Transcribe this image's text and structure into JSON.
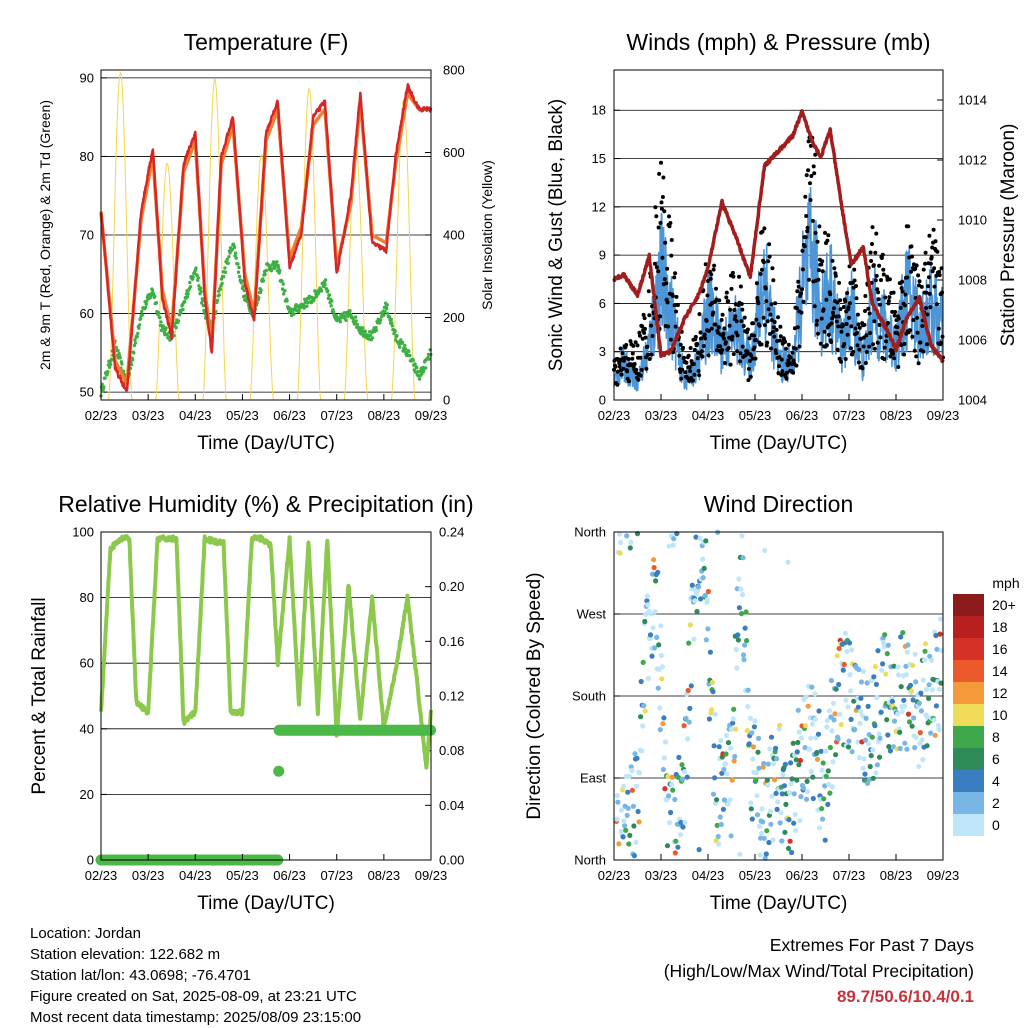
{
  "x_ticks": [
    "02/23",
    "03/23",
    "04/23",
    "05/23",
    "06/23",
    "07/23",
    "08/23",
    "09/23"
  ],
  "panels": {
    "temperature": {
      "title": "Temperature (F)",
      "xlabel": "Time (Day/UTC)",
      "ylabel": "2m & 9m T (Red, Orange) & 2m Td (Green)",
      "ylabel_right": "Solar Insolation (Yellow)",
      "yticks": [
        "50",
        "60",
        "70",
        "80",
        "90"
      ],
      "yticks_right": [
        "0",
        "200",
        "400",
        "600",
        "800"
      ]
    },
    "winds": {
      "title": "Winds (mph) & Pressure (mb)",
      "xlabel": "Time (Day/UTC)",
      "ylabel": "Sonic Wind & Gust (Blue, Black)",
      "ylabel_right": "Station Pressure (Maroon)",
      "yticks": [
        "0",
        "3",
        "6",
        "9",
        "12",
        "15",
        "18"
      ],
      "yticks_right": [
        "1004",
        "1006",
        "1008",
        "1010",
        "1012",
        "1014"
      ]
    },
    "humidity": {
      "title": "Relative Humidity (%) & Precipitation (in)",
      "xlabel": "Time (Day/UTC)",
      "ylabel": "Percent & Total Rainfall",
      "yticks": [
        "0",
        "20",
        "40",
        "60",
        "80",
        "100"
      ],
      "yticks_right": [
        "0.00",
        "0.04",
        "0.08",
        "0.12",
        "0.16",
        "0.20",
        "0.24"
      ]
    },
    "direction": {
      "title": "Wind Direction",
      "xlabel": "Time (Day/UTC)",
      "ylabel": "Direction (Colored By Speed)",
      "yticks": [
        "North",
        "East",
        "South",
        "West",
        "North"
      ],
      "colorbar_title": "mph",
      "colorbar_labels": [
        "20+",
        "18",
        "16",
        "14",
        "12",
        "10",
        "8",
        "6",
        "4",
        "2",
        "0"
      ]
    }
  },
  "colors": {
    "temp_2m": "#d62728",
    "temp_9m": "#f08030",
    "dewpoint": "#3cb043",
    "solar": "#f5d54a",
    "wind": "#4c96d7",
    "gust": "#000000",
    "pressure": "#a01e1e",
    "humidity": "#8cc84b",
    "precip": "#4cb848",
    "colorbar": [
      "#8b1a1a",
      "#b8201f",
      "#d63127",
      "#ec5a2b",
      "#f59a3a",
      "#eedc58",
      "#3fa84a",
      "#2e8b57",
      "#3a7dc1",
      "#78b6e6",
      "#bfe6f8"
    ]
  },
  "chart_data": [
    {
      "type": "line",
      "title": "Temperature (F)",
      "xlabel": "Time (Day/UTC)",
      "ylabel": "2m & 9m T (Red, Orange) & 2m Td (Green)",
      "ylabel_right": "Solar Insolation (Yellow)",
      "ylim": [
        49,
        91
      ],
      "ylim_right": [
        0,
        800
      ],
      "x": [
        0,
        0.3,
        0.55,
        0.85,
        1.1,
        1.3,
        1.5,
        1.75,
        2.0,
        2.2,
        2.35,
        2.55,
        2.8,
        3.05,
        3.25,
        3.5,
        3.75,
        4.0,
        4.25,
        4.5,
        4.75,
        5.0,
        5.3,
        5.5,
        5.75,
        6.05,
        6.25,
        6.5,
        6.75,
        7.0
      ],
      "series": [
        {
          "values": [
            73,
            53,
            50,
            73,
            81,
            62,
            57,
            79,
            83,
            62,
            55,
            80,
            85,
            64,
            59,
            83,
            87,
            66,
            70,
            85,
            87,
            65,
            75,
            88,
            69,
            68,
            80,
            89,
            86,
            86
          ]
        },
        {
          "values": [
            73,
            54,
            51,
            72,
            80,
            63,
            58,
            78,
            82,
            63,
            56,
            79,
            84,
            65,
            60,
            82,
            86,
            67,
            71,
            84,
            86,
            66,
            74,
            87,
            70,
            69,
            79,
            88,
            86,
            86
          ]
        },
        {
          "values": [
            50,
            56,
            51,
            60,
            63,
            58,
            57,
            61,
            66,
            60,
            58,
            64,
            69,
            62,
            60,
            66,
            66,
            60,
            61,
            62,
            64,
            59,
            60,
            58,
            57,
            61,
            57,
            55,
            52,
            55
          ]
        },
        {
          "values": [
            0,
            780,
            0,
            800,
            0,
            760,
            0,
            790,
            0,
            800,
            0,
            810,
            0,
            780,
            0,
            800,
            0,
            790,
            0,
            760,
            0,
            800,
            0,
            810,
            0,
            790,
            0,
            800,
            0,
            100
          ]
        }
      ]
    },
    {
      "type": "scatter",
      "title": "Winds (mph) & Pressure (mb)",
      "xlabel": "Time (Day/UTC)",
      "ylabel": "Sonic Wind & Gust (Blue, Black)",
      "ylabel_right": "Station Pressure (Maroon)",
      "ylim": [
        0,
        20.5
      ],
      "ylim_right": [
        1004,
        1015
      ],
      "x": [
        0,
        0.2,
        0.5,
        0.75,
        1.0,
        1.2,
        1.5,
        1.8,
        2.0,
        2.3,
        2.6,
        2.9,
        3.2,
        3.5,
        3.8,
        4.0,
        4.2,
        4.4,
        4.6,
        4.85,
        5.05,
        5.3,
        5.5,
        5.75,
        6.0,
        6.25,
        6.5,
        6.75,
        7.0
      ],
      "series": [
        {
          "values": [
            1,
            2,
            1,
            3,
            7,
            5,
            1,
            2,
            5,
            3,
            4,
            2,
            7,
            2,
            2,
            6,
            8,
            5,
            6,
            3,
            5,
            2,
            5,
            4,
            3,
            6,
            4,
            5,
            4
          ]
        },
        {
          "values": [
            2,
            3,
            3,
            6,
            13,
            9,
            2,
            4,
            8,
            5,
            7,
            3,
            10,
            4,
            3,
            9,
            15,
            8,
            9,
            5,
            8,
            4,
            9,
            7,
            5,
            9,
            6,
            9,
            7
          ]
        },
        {
          "values": [
            1008,
            1008.2,
            1007.5,
            1008.8,
            1005.5,
            1005.6,
            1006.7,
            1007.5,
            1008.4,
            1010.6,
            1009.4,
            1008.1,
            1011.8,
            1012.3,
            1012.8,
            1013.6,
            1012.7,
            1012.1,
            1013.0,
            1010.4,
            1008.5,
            1009.1,
            1007.2,
            1006.5,
            1005.7,
            1006.8,
            1007.4,
            1005.8,
            1005.3
          ]
        }
      ]
    },
    {
      "type": "line",
      "title": "Relative Humidity (%) & Precipitation (in)",
      "xlabel": "Time (Day/UTC)",
      "ylabel": "Percent & Total Rainfall",
      "ylim": [
        0,
        100
      ],
      "ylim_right": [
        0,
        0.24
      ],
      "x": [
        0,
        0.2,
        0.45,
        0.6,
        0.75,
        1.0,
        1.2,
        1.45,
        1.6,
        1.75,
        2.0,
        2.2,
        2.45,
        2.6,
        2.75,
        3.0,
        3.2,
        3.4,
        3.6,
        3.75,
        4.0,
        4.2,
        4.4,
        4.6,
        4.8,
        5.0,
        5.25,
        5.5,
        5.75,
        6.0,
        6.25,
        6.5,
        6.7,
        6.9,
        7.0
      ],
      "series": [
        {
          "values": [
            45,
            95,
            98,
            98,
            48,
            45,
            98,
            98,
            98,
            42,
            45,
            98,
            97,
            97,
            45,
            45,
            98,
            98,
            96,
            60,
            98,
            47,
            97,
            45,
            98,
            38,
            84,
            43,
            80,
            40,
            58,
            80,
            55,
            28,
            45
          ]
        },
        {
          "values": [
            0,
            0,
            0,
            0,
            0,
            0,
            0,
            0,
            0,
            0,
            0,
            0,
            0,
            0,
            0,
            0,
            0,
            0,
            0,
            0.095,
            0.095,
            0.095,
            0.095,
            0.095,
            0.095,
            0.095,
            0.095,
            0.095,
            0.095,
            0.095,
            0.095,
            0.095,
            0.095,
            0.095,
            0.095
          ]
        }
      ]
    },
    {
      "type": "scatter",
      "title": "Wind Direction",
      "xlabel": "Time (Day/UTC)",
      "ylabel": "Direction (Colored By Speed)",
      "ylim": [
        0,
        360
      ],
      "x": [
        0.2,
        0.5,
        0.7,
        0.9,
        1.2,
        1.5,
        1.7,
        1.9,
        2.2,
        2.5,
        2.7,
        2.9,
        3.2,
        3.5,
        3.7,
        3.9,
        4.2,
        4.5,
        4.7,
        4.9,
        5.2,
        5.5,
        5.7,
        5.9,
        6.2,
        6.5,
        6.7,
        6.9
      ],
      "values": [
        30,
        60,
        250,
        280,
        20,
        90,
        300,
        340,
        60,
        90,
        330,
        120,
        40,
        100,
        30,
        100,
        140,
        70,
        170,
        190,
        160,
        140,
        190,
        180,
        190,
        150,
        200,
        200
      ]
    }
  ],
  "info": {
    "location": "Location: Jordan",
    "elevation": "Station elevation: 122.682 m",
    "latlon": "Station lat/lon: 43.0698; -76.4701",
    "created": "Figure created on Sat, 2025-08-09, at 23:21 UTC",
    "recent": "Most recent data timestamp: 2025/08/09 23:15:00"
  },
  "extremes": {
    "line1": "Extremes For Past 7 Days",
    "line2": "(High/Low/Max Wind/Total Precipitation)",
    "values": "89.7/50.6/10.4/0.1"
  }
}
